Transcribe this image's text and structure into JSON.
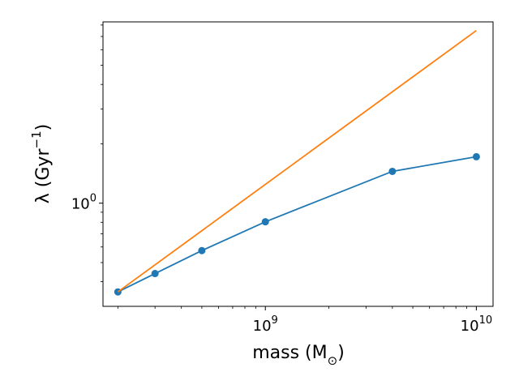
{
  "chart_data": {
    "type": "line",
    "xlabel": "mass (M⊙)",
    "xlabel_main": "mass (M",
    "xlabel_sub": "⊙",
    "xlabel_close": ")",
    "ylabel": "λ (Gyr⁻¹)",
    "ylabel_main": "λ (Gyr",
    "ylabel_sup": "−1",
    "ylabel_close": ")",
    "x_scale": "log",
    "y_scale": "log",
    "xlim": [
      170000000,
      12000000000
    ],
    "ylim": [
      0.3,
      8.3
    ],
    "x_major_ticks": [
      {
        "value": 1000000000,
        "base": "10",
        "exp": "9"
      },
      {
        "value": 10000000000,
        "base": "10",
        "exp": "10"
      }
    ],
    "y_major_ticks": [
      {
        "value": 1.0,
        "base": "10",
        "exp": "0"
      }
    ],
    "x_minor_ticks": [
      200000000,
      300000000,
      400000000,
      500000000,
      600000000,
      700000000,
      800000000,
      900000000,
      2000000000,
      3000000000,
      4000000000,
      5000000000,
      6000000000,
      7000000000,
      8000000000,
      9000000000
    ],
    "y_minor_ticks": [
      0.4,
      0.5,
      0.6,
      0.7,
      0.8,
      0.9,
      2,
      3,
      4,
      5,
      6,
      7,
      8
    ],
    "grid": false,
    "series": [
      {
        "color": "#1f77b4",
        "markers": true,
        "x": [
          200000000,
          300000000,
          500000000,
          1000000000,
          4000000000,
          10000000000
        ],
        "y": [
          0.355,
          0.44,
          0.575,
          0.805,
          1.45,
          1.72
        ]
      },
      {
        "color": "#ff7f0e",
        "markers": false,
        "x": [
          200000000,
          10000000000
        ],
        "y": [
          0.355,
          7.5
        ]
      }
    ]
  }
}
